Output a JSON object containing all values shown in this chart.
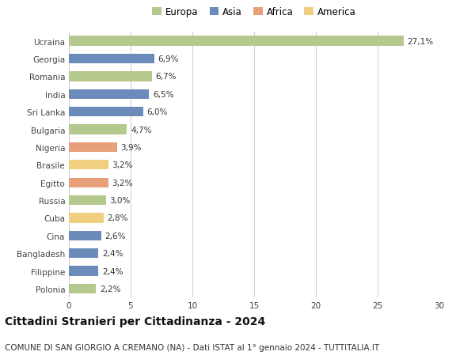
{
  "categories": [
    "Ucraina",
    "Georgia",
    "Romania",
    "India",
    "Sri Lanka",
    "Bulgaria",
    "Nigeria",
    "Brasile",
    "Egitto",
    "Russia",
    "Cuba",
    "Cina",
    "Bangladesh",
    "Filippine",
    "Polonia"
  ],
  "values": [
    27.1,
    6.9,
    6.7,
    6.5,
    6.0,
    4.7,
    3.9,
    3.2,
    3.2,
    3.0,
    2.8,
    2.6,
    2.4,
    2.4,
    2.2
  ],
  "labels": [
    "27,1%",
    "6,9%",
    "6,7%",
    "6,5%",
    "6,0%",
    "4,7%",
    "3,9%",
    "3,2%",
    "3,2%",
    "3,0%",
    "2,8%",
    "2,6%",
    "2,4%",
    "2,4%",
    "2,2%"
  ],
  "continents": [
    "Europa",
    "Asia",
    "Europa",
    "Asia",
    "Asia",
    "Europa",
    "Africa",
    "America",
    "Africa",
    "Europa",
    "America",
    "Asia",
    "Asia",
    "Asia",
    "Europa"
  ],
  "continent_colors": {
    "Europa": "#b5c98e",
    "Asia": "#6b8cba",
    "Africa": "#e8a07a",
    "America": "#f0d080"
  },
  "legend_order": [
    "Europa",
    "Asia",
    "Africa",
    "America"
  ],
  "title": "Cittadini Stranieri per Cittadinanza - 2024",
  "subtitle": "COMUNE DI SAN GIORGIO A CREMANO (NA) - Dati ISTAT al 1° gennaio 2024 - TUTTITALIA.IT",
  "xlim": [
    0,
    30
  ],
  "xticks": [
    0,
    5,
    10,
    15,
    20,
    25,
    30
  ],
  "background_color": "#ffffff",
  "grid_color": "#d0d0d0",
  "title_fontsize": 10,
  "subtitle_fontsize": 7.5,
  "label_fontsize": 7.5,
  "tick_fontsize": 7.5,
  "legend_fontsize": 8.5,
  "bar_height": 0.55
}
